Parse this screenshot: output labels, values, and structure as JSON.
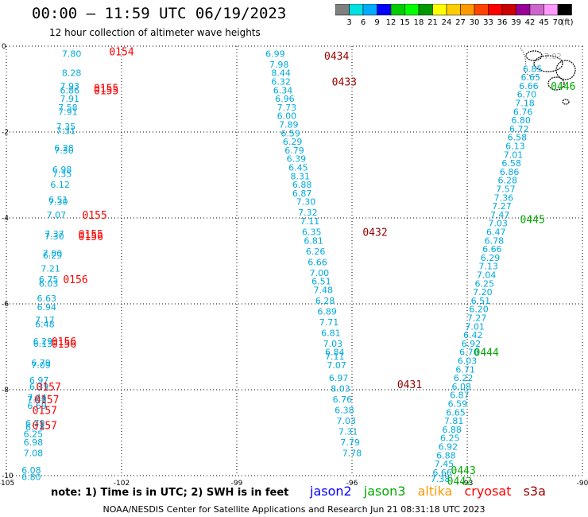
{
  "header": {
    "title": "00:00 – 11:59 UTC 06/19/2023",
    "subtitle": "12 hour collection of altimeter wave heights"
  },
  "colorbar": {
    "labels": [
      "3",
      "6",
      "9",
      "12",
      "15",
      "18",
      "21",
      "24",
      "27",
      "30",
      "33",
      "36",
      "39",
      "42",
      "45",
      "70"
    ],
    "unit": "(ft)",
    "colors": [
      "#808080",
      "#00e0e0",
      "#00aaff",
      "#0000ff",
      "#00cc00",
      "#00ff00",
      "#009900",
      "#ffff00",
      "#ffcc00",
      "#ff9900",
      "#ff4400",
      "#ff0000",
      "#cc0000",
      "#990099",
      "#cc66cc",
      "#ff99ff",
      "#000000"
    ]
  },
  "axes": {
    "xticks": [
      "-105",
      "-102",
      "-99",
      "-96",
      "-93",
      "-90"
    ],
    "yticks": [
      "0",
      "-2",
      "-4",
      "-6",
      "-8",
      "-10"
    ],
    "xlim": [
      -105,
      -90
    ],
    "ylim": [
      -10,
      0
    ]
  },
  "note": "note:  1) Time is in UTC;  2) SWH is in feet",
  "legend": [
    {
      "name": "jason2",
      "color": "#0000ff"
    },
    {
      "name": "jason3",
      "color": "#00aa00"
    },
    {
      "name": "altika",
      "color": "#ff9900"
    },
    {
      "name": "cryosat",
      "color": "#ff0000"
    },
    {
      "name": "s3a",
      "color": "#990000"
    }
  ],
  "footer": "NOAA/NESDIS Center for Satellite Applications and Research   Jun 21 08:31:18 UTC 2023",
  "tracks": [
    {
      "sat": "cryosat",
      "color": "#ff0000",
      "wave_color": "#00aadd",
      "points": [
        [
          -103.3,
          -0.1,
          "7.80"
        ],
        [
          -103.3,
          -0.55,
          "8.28"
        ],
        [
          -103.35,
          -0.85,
          "7.93"
        ],
        [
          -103.35,
          -0.95,
          "6.86"
        ],
        [
          -103.35,
          -1.15,
          "7.91"
        ],
        [
          -103.4,
          -1.35,
          "7.58"
        ],
        [
          -103.4,
          -1.45,
          "7.91"
        ],
        [
          -103.45,
          -1.8,
          "7.35"
        ],
        [
          -103.45,
          -1.9,
          "7.31"
        ],
        [
          -103.5,
          -2.3,
          "6.28"
        ],
        [
          -103.5,
          -2.35,
          "7.30"
        ],
        [
          -103.55,
          -2.8,
          "6.98"
        ],
        [
          -103.55,
          -2.9,
          "7.35"
        ],
        [
          -103.6,
          -3.15,
          "6.12"
        ],
        [
          -103.65,
          -3.5,
          "6.51"
        ],
        [
          -103.65,
          -3.55,
          "7.30"
        ],
        [
          -103.7,
          -3.85,
          "7.07"
        ],
        [
          -103.75,
          -4.3,
          "7.37"
        ],
        [
          -103.75,
          -4.35,
          "7.30"
        ],
        [
          -103.8,
          -4.75,
          "7.00"
        ],
        [
          -103.8,
          -4.8,
          "6.29"
        ],
        [
          -103.85,
          -5.1,
          "7.21"
        ],
        [
          -103.9,
          -5.35,
          "6.75"
        ],
        [
          -103.9,
          -5.45,
          "6.03"
        ],
        [
          -103.95,
          -5.8,
          "6.63"
        ],
        [
          -103.95,
          -6.0,
          "6.94"
        ],
        [
          -104.0,
          -6.3,
          "7.17"
        ],
        [
          -104.0,
          -6.4,
          "6.48"
        ],
        [
          -104.05,
          -6.8,
          "6.29"
        ],
        [
          -104.05,
          -6.85,
          "6.13"
        ],
        [
          -104.1,
          -7.3,
          "6.79"
        ],
        [
          -104.1,
          -7.35,
          "7.09"
        ],
        [
          -104.15,
          -7.7,
          "6.97"
        ],
        [
          -104.15,
          -7.85,
          "6.39"
        ],
        [
          -104.2,
          -8.1,
          "7.44"
        ],
        [
          -104.2,
          -8.15,
          "7.48"
        ],
        [
          -104.2,
          -8.3,
          "6.69"
        ],
        [
          -104.25,
          -8.7,
          "6.79"
        ],
        [
          -104.25,
          -8.8,
          "6.78"
        ],
        [
          -104.3,
          -8.95,
          "6.25"
        ],
        [
          -104.3,
          -9.15,
          "6.98"
        ],
        [
          -104.3,
          -9.4,
          "7.08"
        ],
        [
          -104.35,
          -9.8,
          "6.08"
        ],
        [
          -104.35,
          -9.95,
          "6.80"
        ]
      ],
      "times": [
        [
          -102.0,
          -0.05,
          "0154"
        ],
        [
          -102.4,
          -0.9,
          "0155"
        ],
        [
          -102.4,
          -0.95,
          "0155"
        ],
        [
          -102.7,
          -3.85,
          "0155"
        ],
        [
          -102.8,
          -4.3,
          "0155"
        ],
        [
          -102.8,
          -4.35,
          "0156"
        ],
        [
          -103.2,
          -5.35,
          "0156"
        ],
        [
          -103.5,
          -6.8,
          "0156"
        ],
        [
          -103.5,
          -6.85,
          "0156"
        ],
        [
          -103.9,
          -7.85,
          "0157"
        ],
        [
          -103.95,
          -8.15,
          "0157"
        ],
        [
          -104.0,
          -8.4,
          "0157"
        ],
        [
          -104.0,
          -8.75,
          "0157"
        ]
      ]
    },
    {
      "sat": "s3a",
      "color": "#990000",
      "wave_color": "#00aadd",
      "points": [
        [
          -98.0,
          -0.1,
          "6.99"
        ],
        [
          -97.9,
          -0.35,
          "7.98"
        ],
        [
          -97.85,
          -0.55,
          "8.44"
        ],
        [
          -97.85,
          -0.75,
          "6.32"
        ],
        [
          -97.8,
          -0.95,
          "6.34"
        ],
        [
          -97.75,
          -1.15,
          "6.96"
        ],
        [
          -97.7,
          -1.35,
          "7.73"
        ],
        [
          -97.7,
          -1.55,
          "6.00"
        ],
        [
          -97.65,
          -1.75,
          "7.89"
        ],
        [
          -97.6,
          -1.95,
          "6.59"
        ],
        [
          -97.55,
          -2.15,
          "6.29"
        ],
        [
          -97.5,
          -2.35,
          "6.79"
        ],
        [
          -97.45,
          -2.55,
          "6.39"
        ],
        [
          -97.4,
          -2.75,
          "6.45"
        ],
        [
          -97.35,
          -2.95,
          "8.31"
        ],
        [
          -97.3,
          -3.15,
          "6.88"
        ],
        [
          -97.3,
          -3.35,
          "6.87"
        ],
        [
          -97.2,
          -3.55,
          "7.30"
        ],
        [
          -97.15,
          -3.8,
          "7.32"
        ],
        [
          -97.1,
          -4.0,
          "7.11"
        ],
        [
          -97.05,
          -4.25,
          "6.35"
        ],
        [
          -97.0,
          -4.45,
          "6.81"
        ],
        [
          -96.95,
          -4.7,
          "6.26"
        ],
        [
          -96.9,
          -4.95,
          "6.66"
        ],
        [
          -96.85,
          -5.2,
          "7.00"
        ],
        [
          -96.8,
          -5.4,
          "6.51"
        ],
        [
          -96.75,
          -5.6,
          "7.48"
        ],
        [
          -96.7,
          -5.85,
          "6.28"
        ],
        [
          -96.65,
          -6.1,
          "6.89"
        ],
        [
          -96.6,
          -6.35,
          "7.71"
        ],
        [
          -96.55,
          -6.6,
          "6.81"
        ],
        [
          -96.5,
          -6.85,
          "7.03"
        ],
        [
          -96.45,
          -7.05,
          "6.84"
        ],
        [
          -96.45,
          -7.15,
          "7.11"
        ],
        [
          -96.4,
          -7.35,
          "7.07"
        ],
        [
          -96.35,
          -7.65,
          "6.97"
        ],
        [
          -96.3,
          -7.9,
          "8.03"
        ],
        [
          -96.25,
          -8.15,
          "6.76"
        ],
        [
          -96.2,
          -8.4,
          "6.38"
        ],
        [
          -96.15,
          -8.65,
          "7.03"
        ],
        [
          -96.1,
          -8.9,
          "7.31"
        ],
        [
          -96.05,
          -9.15,
          "7.79"
        ],
        [
          -96.0,
          -9.4,
          "7.78"
        ]
      ],
      "times": [
        [
          -96.4,
          -0.15,
          "0434"
        ],
        [
          -96.2,
          -0.75,
          "0433"
        ],
        [
          -95.4,
          -4.25,
          "0432"
        ],
        [
          -94.5,
          -7.8,
          "0431"
        ]
      ]
    },
    {
      "sat": "jason3",
      "color": "#00aa00",
      "wave_color": "#00aadd",
      "points": [
        [
          -91.3,
          -0.45,
          "6.85"
        ],
        [
          -91.35,
          -0.65,
          "6.65"
        ],
        [
          -91.4,
          -0.85,
          "6.66"
        ],
        [
          -91.45,
          -1.05,
          "6.70"
        ],
        [
          -91.5,
          -1.25,
          "7.18"
        ],
        [
          -91.55,
          -1.45,
          "6.76"
        ],
        [
          -91.6,
          -1.65,
          "6.80"
        ],
        [
          -91.65,
          -1.85,
          "6.72"
        ],
        [
          -91.7,
          -2.05,
          "6.58"
        ],
        [
          -91.75,
          -2.25,
          "6.13"
        ],
        [
          -91.8,
          -2.45,
          "7.01"
        ],
        [
          -91.85,
          -2.65,
          "6.58"
        ],
        [
          -91.9,
          -2.85,
          "6.86"
        ],
        [
          -91.95,
          -3.05,
          "6.28"
        ],
        [
          -92.0,
          -3.25,
          "7.57"
        ],
        [
          -92.05,
          -3.45,
          "7.36"
        ],
        [
          -92.1,
          -3.65,
          "7.27"
        ],
        [
          -92.15,
          -3.85,
          "7.47"
        ],
        [
          -92.2,
          -4.05,
          "7.03"
        ],
        [
          -92.25,
          -4.25,
          "6.47"
        ],
        [
          -92.3,
          -4.45,
          "6.78"
        ],
        [
          -92.35,
          -4.65,
          "6.66"
        ],
        [
          -92.4,
          -4.85,
          "6.29"
        ],
        [
          -92.45,
          -5.05,
          "7.13"
        ],
        [
          -92.5,
          -5.25,
          "7.04"
        ],
        [
          -92.55,
          -5.45,
          "6.25"
        ],
        [
          -92.6,
          -5.65,
          "7.20"
        ],
        [
          -92.65,
          -5.85,
          "6.51"
        ],
        [
          -92.7,
          -6.05,
          "6.20"
        ],
        [
          -92.75,
          -6.25,
          "7.27"
        ],
        [
          -92.8,
          -6.45,
          "7.01"
        ],
        [
          -92.85,
          -6.65,
          "6.42"
        ],
        [
          -92.9,
          -6.85,
          "6.92"
        ],
        [
          -92.95,
          -7.05,
          "6.70"
        ],
        [
          -93.0,
          -7.25,
          "6.03"
        ],
        [
          -93.05,
          -7.45,
          "6.71"
        ],
        [
          -93.1,
          -7.65,
          "6.22"
        ],
        [
          -93.15,
          -7.85,
          "6.08"
        ],
        [
          -93.2,
          -8.05,
          "6.87"
        ],
        [
          -93.25,
          -8.25,
          "6.59"
        ],
        [
          -93.3,
          -8.45,
          "6.65"
        ],
        [
          -93.35,
          -8.65,
          "7.81"
        ],
        [
          -93.4,
          -8.85,
          "6.88"
        ],
        [
          -93.45,
          -9.05,
          "6.25"
        ],
        [
          -93.5,
          -9.25,
          "6.92"
        ],
        [
          -93.55,
          -9.45,
          "6.88"
        ],
        [
          -93.6,
          -9.65,
          "7.45"
        ],
        [
          -93.65,
          -9.85,
          "6.66"
        ],
        [
          -93.7,
          -10.0,
          "7.38"
        ]
      ],
      "times": [
        [
          -90.5,
          -0.85,
          "0446"
        ],
        [
          -91.3,
          -3.95,
          "0445"
        ],
        [
          -92.5,
          -7.05,
          "0444"
        ],
        [
          -93.1,
          -9.8,
          "0443"
        ],
        [
          -93.2,
          -10.05,
          "0442"
        ]
      ]
    }
  ],
  "island_labels": [
    [
      -91.0,
      -0.15,
      "7.02"
    ]
  ]
}
